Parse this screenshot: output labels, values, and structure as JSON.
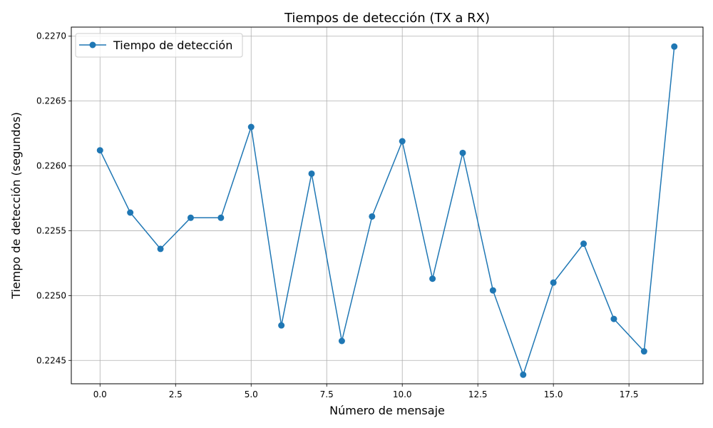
{
  "chart_data": {
    "type": "line",
    "title": "Tiempos de detección (TX a RX)",
    "xlabel": "Número de mensaje",
    "ylabel": "Tiempo de detección (segundos)",
    "xlim": [
      -0.95,
      19.95
    ],
    "ylim": [
      0.22432,
      0.22707
    ],
    "xticks": [
      0.0,
      2.5,
      5.0,
      7.5,
      10.0,
      12.5,
      15.0,
      17.5
    ],
    "xtick_labels": [
      "0.0",
      "2.5",
      "5.0",
      "7.5",
      "10.0",
      "12.5",
      "15.0",
      "17.5"
    ],
    "yticks": [
      0.2245,
      0.225,
      0.2255,
      0.226,
      0.2265,
      0.227
    ],
    "ytick_labels": [
      "0.2245",
      "0.2250",
      "0.2255",
      "0.2260",
      "0.2265",
      "0.2270"
    ],
    "grid": true,
    "legend_position": "top-left",
    "colors": {
      "series": "#1f77b4",
      "grid": "#b0b0b0",
      "axes": "#000000"
    },
    "series": [
      {
        "name": "Tiempo de detección",
        "marker": "circle",
        "x": [
          0,
          1,
          2,
          3,
          4,
          5,
          6,
          7,
          8,
          9,
          10,
          11,
          12,
          13,
          14,
          15,
          16,
          17,
          18,
          19
        ],
        "y": [
          0.22612,
          0.22564,
          0.22536,
          0.2256,
          0.2256,
          0.2263,
          0.22477,
          0.22594,
          0.22465,
          0.22561,
          0.22619,
          0.22513,
          0.2261,
          0.22504,
          0.22439,
          0.2251,
          0.2254,
          0.22482,
          0.22457,
          0.22692
        ]
      }
    ]
  }
}
